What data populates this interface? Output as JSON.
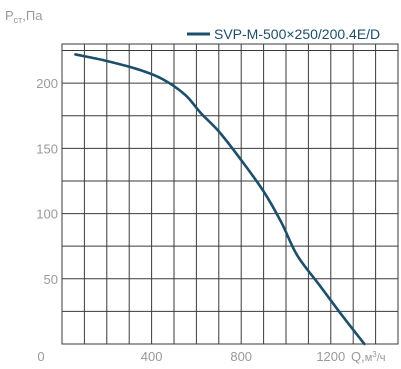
{
  "chart_data": {
    "type": "line",
    "ylabel": "Pст,Па",
    "xlabel": "Q,м³/ч",
    "xlim": [
      0,
      1500
    ],
    "ylim": [
      0,
      230
    ],
    "x_ticks": [
      0,
      400,
      800,
      1200
    ],
    "y_ticks": [
      50,
      100,
      150,
      200
    ],
    "grid": true,
    "legend_position": "top-right",
    "series": [
      {
        "name": "SVP-M-500×250/200.4E/D",
        "color": "#1d4f6b",
        "x": [
          60,
          200,
          350,
          450,
          550,
          620,
          700,
          800,
          900,
          980,
          1050,
          1150,
          1250,
          1350
        ],
        "y": [
          222,
          217,
          210,
          203,
          191,
          177,
          163,
          141,
          117,
          93,
          68,
          45,
          22,
          0
        ]
      }
    ]
  }
}
